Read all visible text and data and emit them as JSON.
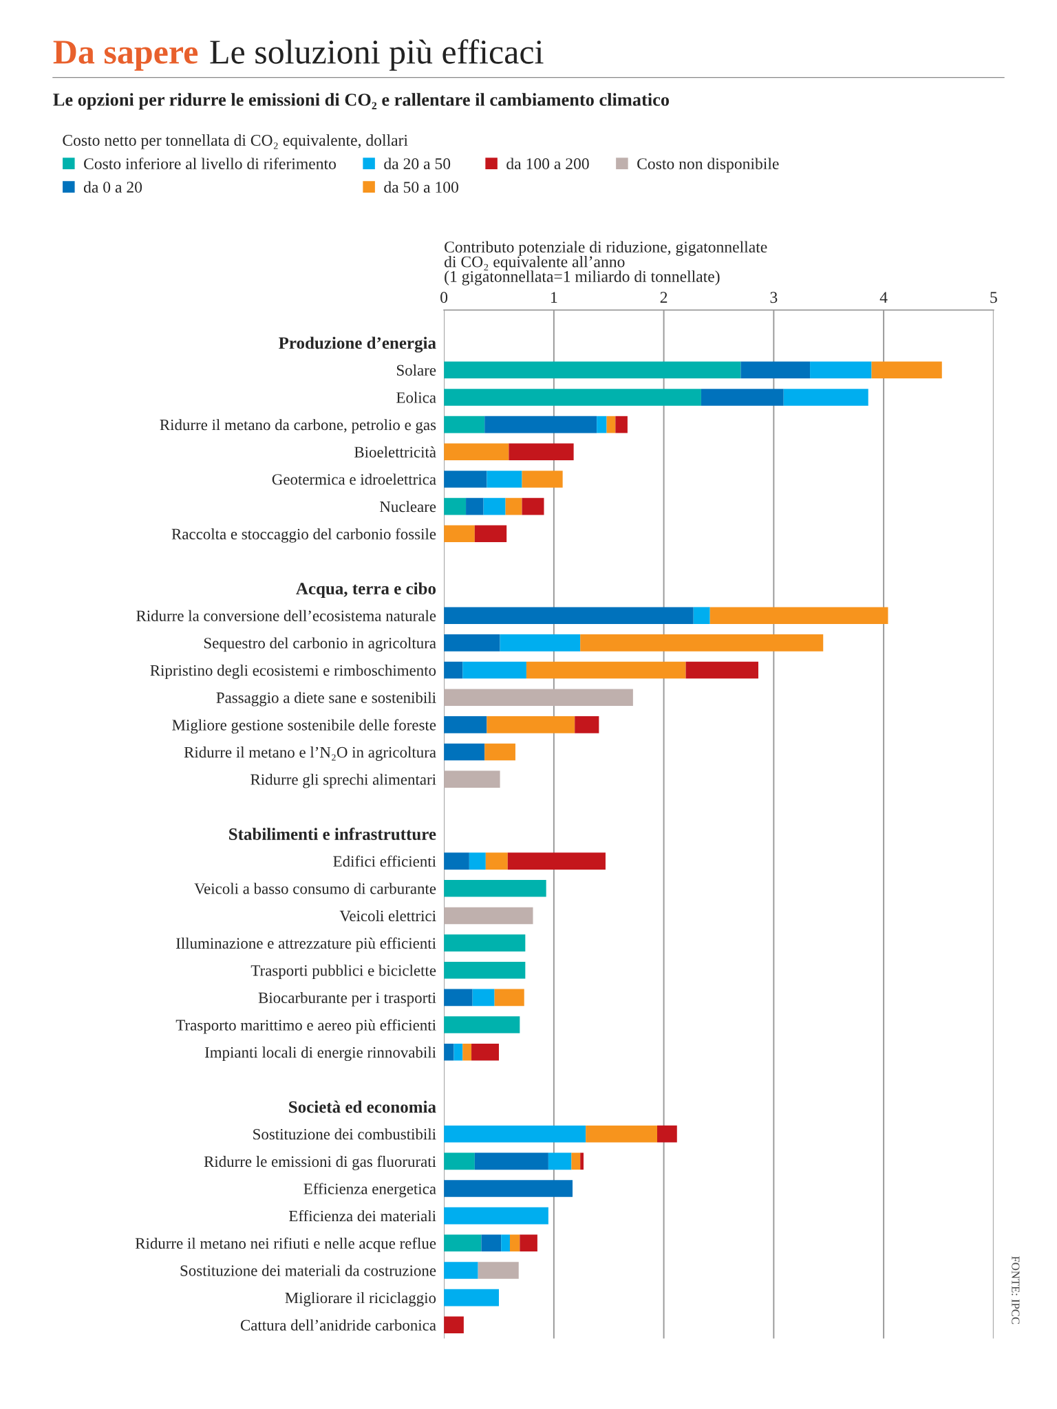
{
  "chart_data": {
    "type": "bar",
    "orientation": "horizontal",
    "stacked": true,
    "title": "Le soluzioni più efficaci",
    "subtitle": "Le opzioni per ridurre le emissioni di CO₂ e rallentare il cambiamento climatico",
    "legend_title": "Costo netto per tonnellata di CO₂ equivalente, dollari",
    "xlabel": "Contributo potenziale di riduzione, gigatonnellate\ndi CO₂ equivalente all’anno\n(1 gigatonnellata=1 miliardo di tonnellate)",
    "annotations": [
      "Da sapere",
      "FONTE: IPCC"
    ],
    "categories": [
      "Produzione d’energia",
      "Solare",
      "Eolica",
      "Ridurre il metano da carbone, petrolio e gas",
      "Bioelettricità",
      "Geotermica e idroelettrica",
      "Nucleare",
      "Raccolta e stoccaggio del carbonio fossile",
      null,
      "Acqua, terra e cibo",
      "Ridurre la conversione dell’ecosistema naturale",
      "Sequestro del carbonio in agricoltura",
      "Ripristino degli ecosistemi e rimboschimento",
      "Passaggio a diete sane e sostenibili",
      "Migliore gestione sostenibile delle foreste",
      "Ridurre il metano e l’N₂O in agricoltura",
      "Ridurre gli sprechi alimentari",
      null,
      "Stabilimenti e infrastrutture",
      "Edifici efficienti",
      "Veicoli a basso consumo di carburante",
      "Veicoli elettrici",
      "Illuminazione e attrezzature più efficienti",
      "Trasporti pubblici e biciclette",
      "Biocarburante per i trasporti",
      "Trasporto marittimo e aereo più efficienti",
      "Impianti locali di energie rinnovabili",
      null,
      "Società ed economia",
      "Sostituzione dei combustibili",
      "Ridurre le emissioni di gas fluorurati",
      "Efficienza energetica",
      "Efficienza dei materiali",
      "Ridurre il metano nei rifiuti e nelle acque reflue",
      "Sostituzione dei materiali da costruzione",
      "Migliorare il riciclaggio",
      "Cattura dell’anidride carbonica"
    ],
    "series": [
      {
        "name": "Costo inferiore al livello di riferimento",
        "color": "#00b2ad",
        "values": [
          null,
          2.7,
          2.34,
          0.37,
          null,
          null,
          0.2,
          null,
          null,
          null,
          null,
          null,
          null,
          null,
          null,
          null,
          null,
          null,
          null,
          null,
          0.93,
          null,
          0.74,
          0.74,
          null,
          0.69,
          null,
          null,
          null,
          null,
          0.28,
          null,
          null,
          0.34,
          null,
          null,
          null
        ]
      },
      {
        "name": "da 0 a 20",
        "color": "#0072bc",
        "values": [
          null,
          0.63,
          0.75,
          1.02,
          null,
          0.39,
          0.16,
          null,
          null,
          null,
          2.27,
          0.51,
          0.17,
          null,
          0.39,
          0.37,
          null,
          null,
          null,
          0.23,
          null,
          null,
          null,
          null,
          0.26,
          null,
          0.09,
          null,
          null,
          null,
          0.67,
          1.17,
          null,
          0.18,
          null,
          null,
          null
        ]
      },
      {
        "name": "da 20 a 50",
        "color": "#00aeef",
        "values": [
          null,
          0.56,
          0.77,
          0.09,
          null,
          0.32,
          0.2,
          null,
          null,
          null,
          0.15,
          0.73,
          0.58,
          null,
          null,
          null,
          null,
          null,
          null,
          0.15,
          null,
          null,
          null,
          null,
          0.2,
          null,
          0.08,
          null,
          null,
          1.29,
          0.21,
          null,
          0.95,
          0.08,
          0.31,
          0.5,
          null
        ]
      },
      {
        "name": "da 50 a 100",
        "color": "#f7941d",
        "values": [
          null,
          0.64,
          null,
          0.08,
          0.59,
          0.37,
          0.15,
          0.28,
          null,
          null,
          1.62,
          2.21,
          1.45,
          null,
          0.8,
          0.28,
          null,
          null,
          null,
          0.2,
          null,
          null,
          null,
          null,
          0.27,
          null,
          0.08,
          null,
          null,
          0.65,
          0.08,
          null,
          null,
          0.09,
          null,
          null,
          null
        ]
      },
      {
        "name": "da 100 a 200",
        "color": "#c4161c",
        "values": [
          null,
          null,
          null,
          0.11,
          0.59,
          null,
          0.2,
          0.29,
          null,
          null,
          null,
          null,
          0.66,
          null,
          0.22,
          null,
          null,
          null,
          null,
          0.89,
          null,
          null,
          null,
          null,
          null,
          null,
          0.25,
          null,
          null,
          0.18,
          0.03,
          null,
          null,
          0.16,
          null,
          null,
          0.18
        ]
      },
      {
        "name": "Costo non disponibile",
        "color": "#bfb0ad",
        "values": [
          null,
          null,
          null,
          null,
          null,
          null,
          null,
          null,
          null,
          null,
          null,
          null,
          null,
          1.72,
          null,
          null,
          0.51,
          null,
          null,
          null,
          null,
          0.81,
          null,
          null,
          null,
          null,
          null,
          null,
          null,
          null,
          null,
          null,
          null,
          null,
          0.37,
          null,
          null
        ]
      }
    ],
    "xlim": [
      0,
      5
    ],
    "xticks": [
      0,
      1,
      2,
      3,
      4,
      5
    ],
    "grid": "x",
    "legend": "top"
  }
}
